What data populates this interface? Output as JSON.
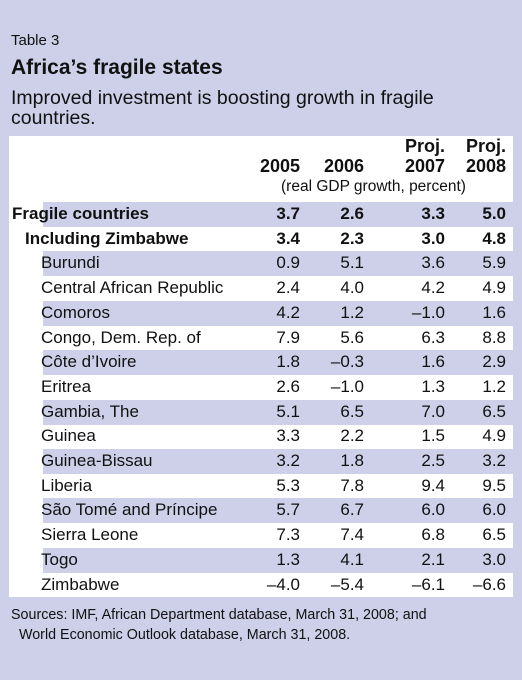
{
  "table_label": "Table 3",
  "title": "Africa’s fragile states",
  "subtitle": "Improved investment is boosting growth in fragile countries.",
  "columns": [
    {
      "proj": "",
      "year": "2005"
    },
    {
      "proj": "",
      "year": "2006"
    },
    {
      "proj": "Proj.",
      "year": "2007"
    },
    {
      "proj": "Proj.",
      "year": "2008"
    }
  ],
  "units": "(real GDP growth, percent)",
  "rows": [
    {
      "label": "Fragile countries",
      "values": [
        "3.7",
        "2.6",
        "3.3",
        "5.0"
      ]
    },
    {
      "label": "Including Zimbabwe",
      "values": [
        "3.4",
        "2.3",
        "3.0",
        "4.8"
      ]
    },
    {
      "label": "Burundi",
      "values": [
        "0.9",
        "5.1",
        "3.6",
        "5.9"
      ]
    },
    {
      "label": "Central African Republic",
      "values": [
        "2.4",
        "4.0",
        "4.2",
        "4.9"
      ]
    },
    {
      "label": "Comoros",
      "values": [
        "4.2",
        "1.2",
        "–1.0",
        "1.6"
      ]
    },
    {
      "label": "Congo, Dem. Rep. of",
      "values": [
        "7.9",
        "5.6",
        "6.3",
        "8.8"
      ]
    },
    {
      "label": "Côte d’Ivoire",
      "values": [
        "1.8",
        "–0.3",
        "1.6",
        "2.9"
      ]
    },
    {
      "label": "Eritrea",
      "values": [
        "2.6",
        "–1.0",
        "1.3",
        "1.2"
      ]
    },
    {
      "label": "Gambia, The",
      "values": [
        "5.1",
        "6.5",
        "7.0",
        "6.5"
      ]
    },
    {
      "label": "Guinea",
      "values": [
        "3.3",
        "2.2",
        "1.5",
        "4.9"
      ]
    },
    {
      "label": "Guinea-Bissau",
      "values": [
        "3.2",
        "1.8",
        "2.5",
        "3.2"
      ]
    },
    {
      "label": "Liberia",
      "values": [
        "5.3",
        "7.8",
        "9.4",
        "9.5"
      ]
    },
    {
      "label": "São Tomé and Príncipe",
      "values": [
        "5.7",
        "6.7",
        "6.0",
        "6.0"
      ]
    },
    {
      "label": "Sierra Leone",
      "values": [
        "7.3",
        "7.4",
        "6.8",
        "6.5"
      ]
    },
    {
      "label": "Togo",
      "values": [
        "1.3",
        "4.1",
        "2.1",
        "3.0"
      ]
    },
    {
      "label": "Zimbabwe",
      "values": [
        "–4.0",
        "–5.4",
        "–6.1",
        "–6.6"
      ]
    }
  ],
  "source_lines": [
    "Sources: IMF, African Department database, March 31, 2008; and",
    "World Economic Outlook database, March 31, 2008."
  ],
  "colors": {
    "frame_background": "#cdd0e8",
    "panel_background": "#ffffff"
  }
}
